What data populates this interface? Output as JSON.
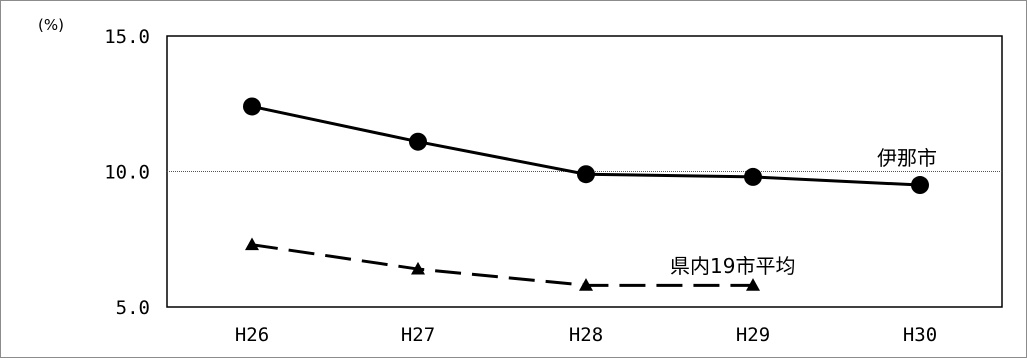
{
  "chart_data": {
    "type": "line",
    "unit_label": "(%)",
    "categories": [
      "H26",
      "H27",
      "H28",
      "H29",
      "H30"
    ],
    "y_ticks": [
      "5.0",
      "10.0",
      "15.0"
    ],
    "ylim": [
      5.0,
      15.0
    ],
    "gridlines": [
      10.0
    ],
    "series": [
      {
        "name": "伊那市",
        "values": [
          12.4,
          11.1,
          9.9,
          9.8,
          9.5
        ],
        "marker": "circle",
        "line_style": "solid",
        "color": "#000000"
      },
      {
        "name": "県内19市平均",
        "values": [
          7.3,
          6.4,
          5.8,
          5.8,
          null
        ],
        "marker": "triangle",
        "line_style": "dashed",
        "color": "#000000"
      }
    ]
  }
}
